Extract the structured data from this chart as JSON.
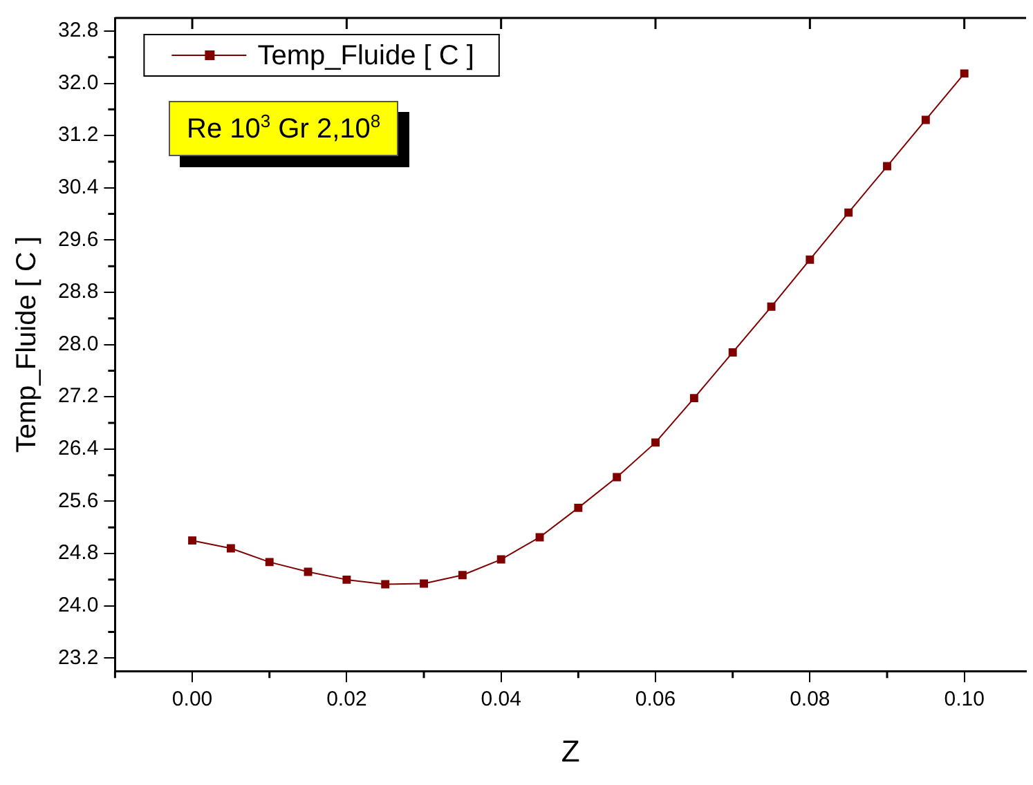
{
  "chart_data": {
    "type": "line",
    "xlabel": "Z",
    "ylabel": "Temp_Fluide [ C ]",
    "annotations": [
      "Re 10$^{3}$ Gr 2,10$^{8}$"
    ],
    "x": [
      0,
      0.005,
      0.01,
      0.015,
      0.02,
      0.025,
      0.03,
      0.035,
      0.04,
      0.045,
      0.05,
      0.055,
      0.06,
      0.065,
      0.07,
      0.075,
      0.08,
      0.085,
      0.09,
      0.095,
      0.1
    ],
    "series": [
      {
        "name": "Temp_Fluide [ C ]",
        "color": "#800000",
        "values": [
          25.0,
          24.88,
          24.67,
          24.52,
          24.4,
          24.33,
          24.34,
          24.47,
          24.71,
          25.05,
          25.5,
          25.97,
          26.5,
          27.18,
          27.88,
          28.58,
          29.3,
          30.02,
          30.73,
          31.44,
          32.15
        ]
      }
    ],
    "xlim": [
      -0.01,
      0.108
    ],
    "ylim": [
      23.0,
      33.0
    ],
    "xticks": [
      {
        "value": 0,
        "label": "0.00"
      },
      {
        "value": 0.02,
        "label": "0.02"
      },
      {
        "value": 0.04,
        "label": "0.04"
      },
      {
        "value": 0.06,
        "label": "0.06"
      },
      {
        "value": 0.08,
        "label": "0.08"
      },
      {
        "value": 0.1,
        "label": "0.10"
      }
    ],
    "yticks": [
      23.2,
      {
        "value": 24,
        "label": "24.0"
      },
      24.8,
      25.6,
      26.4,
      27.2,
      {
        "value": 28,
        "label": "28.0"
      },
      28.8,
      29.6,
      30.4,
      31.2,
      {
        "value": 32,
        "label": "32.0"
      },
      32.8
    ],
    "legend": "top left",
    "marker": "square",
    "line_style": "solid",
    "grid": false
  }
}
